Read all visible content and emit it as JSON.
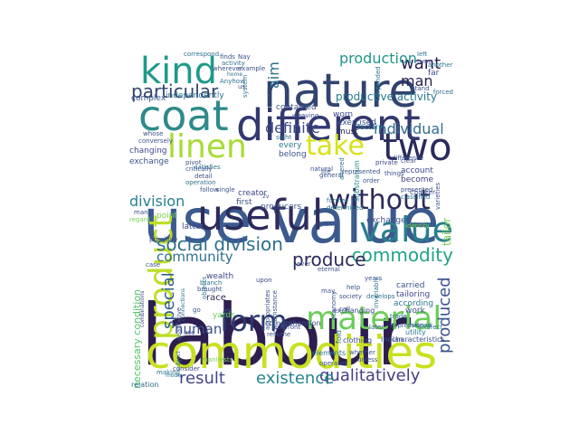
{
  "words": [
    {
      "text": "labour",
      "color": "#2d1e50"
    },
    {
      "text": "use value",
      "color": "#3b5a8e"
    },
    {
      "text": "commodities",
      "color": "#c9e020"
    },
    {
      "text": "nature",
      "color": "#31436f"
    },
    {
      "text": "coat",
      "color": "#2e8a8a"
    },
    {
      "text": "different",
      "color": "#32386e"
    },
    {
      "text": "two",
      "color": "#2a2a5c"
    },
    {
      "text": "kind",
      "color": "#1f9a8a"
    },
    {
      "text": "useful",
      "color": "#2d2b5d"
    },
    {
      "text": "value",
      "color": "#2a7d8e"
    },
    {
      "text": "linen",
      "color": "#a8db34"
    },
    {
      "text": "take",
      "color": "#d8e219"
    },
    {
      "text": "material",
      "color": "#6ccd5a"
    },
    {
      "text": "form",
      "color": "#2a3a6e"
    },
    {
      "text": "product",
      "color": "#bdde26"
    },
    {
      "text": "without",
      "color": "#2c2a5a"
    },
    {
      "text": "social division",
      "color": "#2e6f8e"
    },
    {
      "text": "commodity",
      "color": "#20a386"
    },
    {
      "text": "particular",
      "color": "#31446f"
    },
    {
      "text": "want",
      "color": "#2b2052"
    },
    {
      "text": "qualitatively",
      "color": "#433e85"
    },
    {
      "text": "existence",
      "color": "#25838e"
    },
    {
      "text": "result",
      "color": "#3f4788"
    },
    {
      "text": "produce",
      "color": "#2c2a5a"
    },
    {
      "text": "special",
      "color": "#2e5b8e"
    },
    {
      "text": "produced",
      "color": "#3a548c"
    },
    {
      "text": "individual",
      "color": "#2e6f8e"
    },
    {
      "text": "definite",
      "color": "#3e4a89"
    },
    {
      "text": "production",
      "color": "#1f968b"
    },
    {
      "text": "aim",
      "color": "#2e6e8e"
    },
    {
      "text": "man",
      "color": "#2b2052"
    },
    {
      "text": "division",
      "color": "#277f8e"
    },
    {
      "text": "human",
      "color": "#3d4e8a"
    },
    {
      "text": "community",
      "color": "#2c718e"
    },
    {
      "text": "productive activity",
      "color": "#2a788e"
    },
    {
      "text": "necessary condition",
      "color": "#52c569"
    },
    {
      "text": "tailor",
      "color": "#7ad151"
    },
    {
      "text": "exchange",
      "color": "#3a548c"
    },
    {
      "text": "changing",
      "color": "#3e4989"
    },
    {
      "text": "complex",
      "color": "#3b528b"
    },
    {
      "text": "independently",
      "color": "#2d708e"
    },
    {
      "text": "point",
      "color": "#7ad151"
    },
    {
      "text": "race",
      "color": "#2c2a5a"
    },
    {
      "text": "wealth",
      "color": "#3f4788"
    },
    {
      "text": "upon",
      "color": "#404688"
    },
    {
      "text": "brought",
      "color": "#3b528b"
    },
    {
      "text": "branch",
      "color": "#2d708e"
    },
    {
      "text": "objects",
      "color": "#2a788e"
    },
    {
      "text": "yards",
      "color": "#6ccd5a"
    },
    {
      "text": "carried",
      "color": "#3b528b"
    },
    {
      "text": "tailoring",
      "color": "#3f4788"
    },
    {
      "text": "according",
      "color": "#2a788e"
    },
    {
      "text": "work",
      "color": "#3b528b"
    },
    {
      "text": "exchanged",
      "color": "#3b528b"
    },
    {
      "text": "account",
      "color": "#3e4989"
    },
    {
      "text": "become",
      "color": "#433e85"
    },
    {
      "text": "presented",
      "color": "#3b528b"
    },
    {
      "text": "classified",
      "color": "#2c718e"
    },
    {
      "text": "substratum",
      "color": "#21918c"
    },
    {
      "text": "determined",
      "color": "#2a788e"
    },
    {
      "text": "former",
      "color": "#2c718e"
    },
    {
      "text": "producers",
      "color": "#3b528b"
    },
    {
      "text": "first",
      "color": "#3b528b"
    },
    {
      "text": "creator",
      "color": "#3f4788"
    },
    {
      "text": "belong",
      "color": "#3b528b"
    },
    {
      "text": "every",
      "color": "#2a788e"
    },
    {
      "text": "sight",
      "color": "#2c718e"
    },
    {
      "text": "exercised",
      "color": "#3b528b"
    },
    {
      "text": "must",
      "color": "#2c2a5a"
    },
    {
      "text": "factory",
      "color": "#2c718e"
    },
    {
      "text": "contained",
      "color": "#3b528b"
    },
    {
      "text": "worn",
      "color": "#3e4989"
    },
    {
      "text": "far",
      "color": "#3e4989"
    },
    {
      "text": "another",
      "color": "#2a788e"
    },
    {
      "text": "exchanging",
      "color": "#3f4788"
    },
    {
      "text": "comprehension",
      "color": "#3b528b"
    },
    {
      "text": "clothing",
      "color": "#3f4788"
    },
    {
      "text": "Indian",
      "color": "#3b528b"
    },
    {
      "text": "characteristics",
      "color": "#3b528b"
    },
    {
      "text": "utility",
      "color": "#2a788e"
    },
    {
      "text": "elements",
      "color": "#2c718e"
    },
    {
      "text": "operates",
      "color": "#3b528b"
    },
    {
      "text": "consider",
      "color": "#3f4788"
    },
    {
      "text": "making",
      "color": "#2c718e"
    },
    {
      "text": "relation",
      "color": "#2c718e"
    },
    {
      "text": "manifests",
      "color": "#7ad151"
    },
    {
      "text": "combinations",
      "color": "#3e4989"
    },
    {
      "text": "primitive",
      "color": "#3b528b"
    },
    {
      "text": "latter",
      "color": "#3f4788"
    },
    {
      "text": "expression",
      "color": "#3b528b"
    },
    {
      "text": "helped",
      "color": "#2a788e"
    },
    {
      "text": "effect",
      "color": "#2c718e"
    },
    {
      "text": "general",
      "color": "#3b528b"
    },
    {
      "text": "private",
      "color": "#3f4788"
    },
    {
      "text": "difference",
      "color": "#3b528b"
    },
    {
      "text": "weaving",
      "color": "#3b528b"
    },
    {
      "text": "finds",
      "color": "#3b528b"
    },
    {
      "text": "Nay",
      "color": "#3b528b"
    },
    {
      "text": "activity",
      "color": "#2c718e"
    },
    {
      "text": "wherever",
      "color": "#3b528b"
    },
    {
      "text": "example",
      "color": "#3b528b"
    },
    {
      "text": "correspond",
      "color": "#2c718e"
    },
    {
      "text": "home",
      "color": "#2c718e"
    },
    {
      "text": "Anyhow",
      "color": "#2c718e"
    },
    {
      "text": "system",
      "color": "#2c718e"
    },
    {
      "text": "pivot",
      "color": "#3b528b"
    },
    {
      "text": "satisfies",
      "color": "#2c718e"
    },
    {
      "text": "whose",
      "color": "#3b528b"
    },
    {
      "text": "conversely",
      "color": "#3b528b"
    },
    {
      "text": "critically",
      "color": "#3b528b"
    },
    {
      "text": "detail",
      "color": "#3b528b"
    },
    {
      "text": "operation",
      "color": "#2c718e"
    },
    {
      "text": "follow",
      "color": "#3b528b"
    },
    {
      "text": "single",
      "color": "#3b528b"
    },
    {
      "text": "varieties",
      "color": "#3b528b"
    },
    {
      "text": "left",
      "color": "#2c718e"
    },
    {
      "text": "turns",
      "color": "#3b528b"
    },
    {
      "text": "forced",
      "color": "#2c718e"
    },
    {
      "text": "stand",
      "color": "#3b528b"
    },
    {
      "text": "Chapter",
      "color": "#3b528b"
    },
    {
      "text": "clear",
      "color": "#3b528b"
    },
    {
      "text": "things",
      "color": "#3b528b"
    },
    {
      "text": "help",
      "color": "#3b528b"
    },
    {
      "text": "years",
      "color": "#3b528b"
    },
    {
      "text": "develops",
      "color": "#2c718e"
    },
    {
      "text": "unless",
      "color": "#3b528b"
    },
    {
      "text": "eternal",
      "color": "#3b528b"
    },
    {
      "text": "may",
      "color": "#3b528b"
    },
    {
      "text": "call",
      "color": "#3b528b"
    },
    {
      "text": "subject",
      "color": "#2c718e"
    },
    {
      "text": "mode",
      "color": "#2c718e"
    },
    {
      "text": "case",
      "color": "#3b528b"
    },
    {
      "text": "regard",
      "color": "#7ad151"
    },
    {
      "text": "many",
      "color": "#3b528b"
    },
    {
      "text": "confront",
      "color": "#3b528b"
    },
    {
      "text": "us",
      "color": "#3b528b"
    },
    {
      "text": "fold",
      "color": "#2c718e"
    },
    {
      "text": "life",
      "color": "#3b528b"
    },
    {
      "text": "natural",
      "color": "#3b528b"
    },
    {
      "text": "use",
      "color": "#3b528b"
    },
    {
      "text": "go",
      "color": "#3b528b"
    },
    {
      "text": "society",
      "color": "#3b528b"
    },
    {
      "text": "economy",
      "color": "#3b528b"
    },
    {
      "text": "altered",
      "color": "#2c718e"
    },
    {
      "text": "2v",
      "color": "#3b528b"
    },
    {
      "text": "ever",
      "color": "#3b528b"
    },
    {
      "text": "whether",
      "color": "#3b528b"
    },
    {
      "text": "resume",
      "color": "#3b528b"
    },
    {
      "text": "trade",
      "color": "#2c718e"
    },
    {
      "text": "identity",
      "color": "#7ad151"
    },
    {
      "text": "represented",
      "color": "#3b528b"
    },
    {
      "text": "expended",
      "color": "#2c718e"
    },
    {
      "text": "invariably",
      "color": "#2c718e"
    },
    {
      "text": "order",
      "color": "#3b528b"
    },
    {
      "text": "later",
      "color": "#3b528b"
    },
    {
      "text": "qualitative",
      "color": "#3b528b"
    },
    {
      "text": "connections",
      "color": "#2c718e"
    },
    {
      "text": "appropriates",
      "color": "#3b528b"
    },
    {
      "text": "circumstance",
      "color": "#3b528b"
    },
    {
      "text": "given",
      "color": "#3b528b"
    }
  ]
}
